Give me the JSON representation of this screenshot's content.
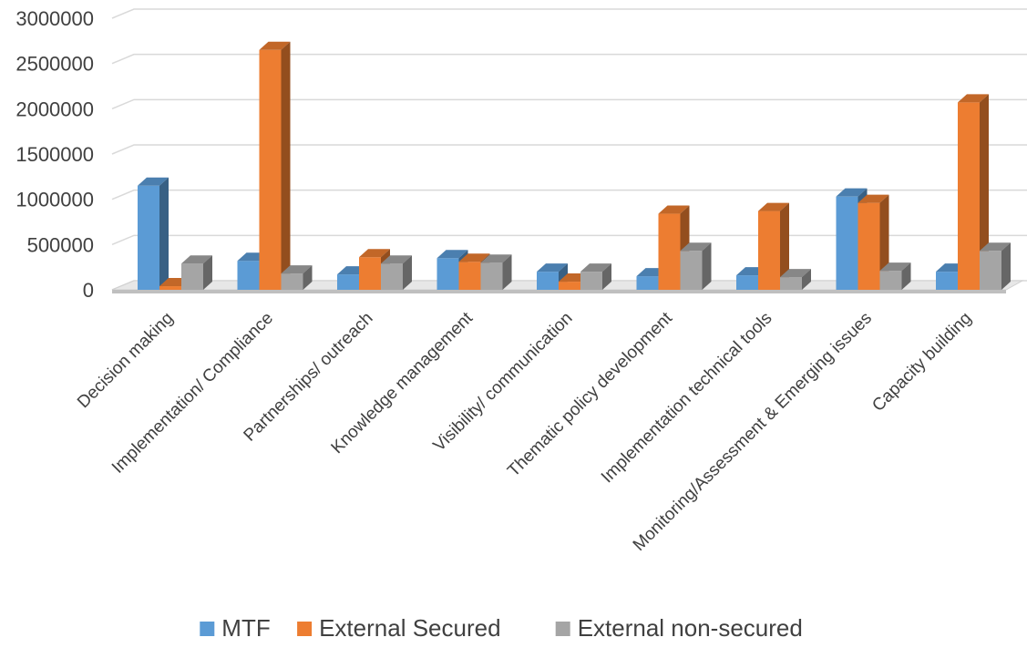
{
  "chart_data": {
    "type": "bar",
    "categories": [
      "Decision making",
      "Implementation/ Compliance",
      "Partnerships/ outreach",
      "Knowledge management",
      "Visibility/ communication",
      "Thematic policy development",
      "Implementation technical tools",
      "Monitoring/Assessment & Emerging issues",
      "Capacity building"
    ],
    "series": [
      {
        "name": "MTF",
        "color": "#5B9BD5",
        "values": [
          1150000,
          320000,
          170000,
          350000,
          200000,
          150000,
          160000,
          1030000,
          200000
        ]
      },
      {
        "name": "External Secured",
        "color": "#ED7D31",
        "values": [
          40000,
          2650000,
          360000,
          310000,
          90000,
          840000,
          870000,
          960000,
          2070000
        ]
      },
      {
        "name": "External non-secured",
        "color": "#A5A5A5",
        "values": [
          290000,
          180000,
          290000,
          300000,
          200000,
          430000,
          140000,
          210000,
          430000
        ]
      }
    ],
    "y_ticks": [
      "0",
      "500000",
      "1000000",
      "1500000",
      "2000000",
      "2500000",
      "3000000"
    ],
    "ylim": [
      0,
      3000000
    ],
    "grid": true,
    "legend": "bottom"
  }
}
